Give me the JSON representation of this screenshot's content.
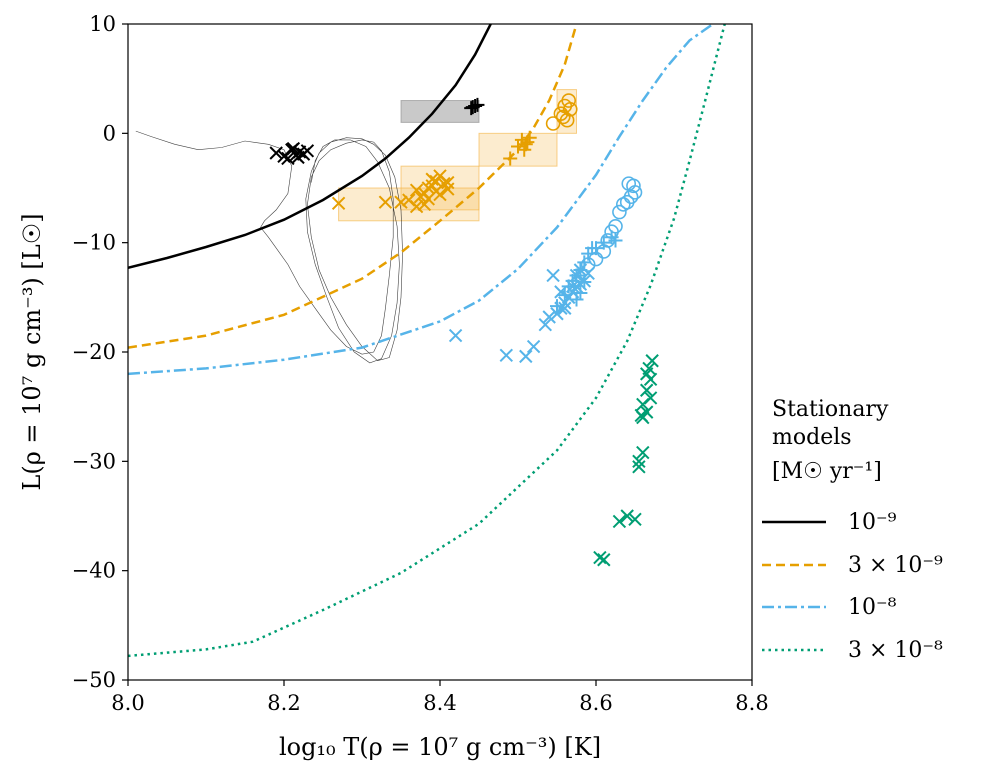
{
  "chart_data": {
    "type": "scatter",
    "xlabel": "log₁₀ T(ρ = 10⁷ g cm⁻³) [K]",
    "ylabel": "L(ρ = 10⁷ g cm⁻³) [L☉]",
    "xlim": [
      8.0,
      8.8
    ],
    "ylim": [
      -50,
      10
    ],
    "xticks": [
      8.0,
      8.2,
      8.4,
      8.6,
      8.8
    ],
    "yticks": [
      -50,
      -40,
      -30,
      -20,
      -10,
      0,
      10
    ],
    "xtick_labels": [
      "8.0",
      "8.2",
      "8.4",
      "8.6",
      "8.8"
    ],
    "ytick_labels": [
      "−50",
      "−40",
      "−30",
      "−20",
      "−10",
      "0",
      "10"
    ],
    "grid": false,
    "legend": {
      "placement": "outside-right",
      "title_lines": [
        "Stationary",
        "models",
        "[M☉ yr⁻¹]"
      ],
      "entries": [
        {
          "label": "10⁻⁹",
          "color": "#000000",
          "style": "solid"
        },
        {
          "label": "3 × 10⁻⁹",
          "color": "#E69F00",
          "style": "dashed"
        },
        {
          "label": "10⁻⁸",
          "color": "#56B4E9",
          "style": "dashdot"
        },
        {
          "label": "3 × 10⁻⁸",
          "color": "#009E73",
          "style": "dotted"
        }
      ]
    },
    "curves": [
      {
        "color": "#000000",
        "style": "solid",
        "x": [
          8.0,
          8.05,
          8.1,
          8.15,
          8.2,
          8.25,
          8.3,
          8.33,
          8.36,
          8.39,
          8.42,
          8.445,
          8.465
        ],
        "y": [
          -12.3,
          -11.4,
          -10.4,
          -9.3,
          -7.9,
          -6.1,
          -3.9,
          -2.3,
          -0.4,
          1.8,
          4.4,
          7.2,
          10.0
        ]
      },
      {
        "color": "#E69F00",
        "style": "dashed",
        "x": [
          8.0,
          8.1,
          8.2,
          8.3,
          8.35,
          8.4,
          8.45,
          8.5,
          8.52,
          8.54,
          8.56,
          8.575
        ],
        "y": [
          -19.6,
          -18.5,
          -16.6,
          -13.3,
          -10.9,
          -8.0,
          -5.0,
          -1.5,
          0.5,
          3.0,
          6.3,
          10.0
        ]
      },
      {
        "color": "#56B4E9",
        "style": "dashdot",
        "x": [
          8.0,
          8.1,
          8.2,
          8.3,
          8.4,
          8.45,
          8.5,
          8.55,
          8.6,
          8.63,
          8.66,
          8.69,
          8.72,
          8.75
        ],
        "y": [
          -22.0,
          -21.5,
          -20.7,
          -19.6,
          -17.2,
          -15.3,
          -12.4,
          -8.6,
          -3.8,
          -0.3,
          3.0,
          6.0,
          8.5,
          10.0
        ]
      },
      {
        "color": "#009E73",
        "style": "dotted",
        "x": [
          8.0,
          8.1,
          8.16,
          8.25,
          8.35,
          8.45,
          8.55,
          8.6,
          8.64,
          8.67,
          8.7,
          8.72,
          8.74,
          8.765
        ],
        "y": [
          -47.8,
          -47.2,
          -46.5,
          -43.6,
          -40.2,
          -35.7,
          -29.0,
          -24.2,
          -19.0,
          -13.9,
          -7.8,
          -2.5,
          3.0,
          10.0
        ]
      }
    ],
    "shaded_boxes": [
      {
        "color": "#888888",
        "opacity": 0.45,
        "x": [
          8.35,
          8.45
        ],
        "y": [
          1.0,
          3.0
        ]
      },
      {
        "color": "#F3B23F",
        "opacity": 0.25,
        "x": [
          8.27,
          8.45
        ],
        "y": [
          -8.0,
          -5.0
        ]
      },
      {
        "color": "#F3B23F",
        "opacity": 0.25,
        "x": [
          8.35,
          8.45
        ],
        "y": [
          -7.0,
          -3.0
        ]
      },
      {
        "color": "#F3B23F",
        "opacity": 0.25,
        "x": [
          8.45,
          8.55
        ],
        "y": [
          -3.0,
          0.0
        ]
      },
      {
        "color": "#F3B23F",
        "opacity": 0.25,
        "x": [
          8.55,
          8.575
        ],
        "y": [
          0.0,
          4.0
        ]
      }
    ],
    "series": [
      {
        "color": "#000000",
        "marker": "x",
        "x": [
          8.19,
          8.2,
          8.21,
          8.215,
          8.22,
          8.225,
          8.23,
          8.205,
          8.218,
          8.212
        ],
        "y": [
          -1.8,
          -2.1,
          -1.5,
          -2.0,
          -1.7,
          -1.9,
          -1.6,
          -2.3,
          -2.2,
          -1.4
        ]
      },
      {
        "color": "#000000",
        "marker": "+",
        "x": [
          8.44,
          8.445,
          8.448,
          8.442
        ],
        "y": [
          2.3,
          2.5,
          2.6,
          2.4
        ]
      },
      {
        "color": "#E69F00",
        "marker": "x",
        "x": [
          8.27,
          8.33,
          8.35,
          8.36,
          8.37,
          8.375,
          8.38,
          8.385,
          8.39,
          8.395,
          8.4,
          8.405,
          8.41,
          8.39,
          8.4,
          8.38,
          8.37,
          8.41,
          8.395,
          8.385
        ],
        "y": [
          -6.4,
          -6.3,
          -6.3,
          -6.1,
          -5.2,
          -5.8,
          -5.5,
          -5.0,
          -4.8,
          -5.3,
          -5.6,
          -4.6,
          -5.1,
          -4.2,
          -3.9,
          -6.5,
          -6.7,
          -4.5,
          -4.4,
          -6.0
        ]
      },
      {
        "color": "#E69F00",
        "marker": "+",
        "x": [
          8.49,
          8.5,
          8.505,
          8.51,
          8.515,
          8.512,
          8.508
        ],
        "y": [
          -2.3,
          -1.2,
          -0.6,
          -1.0,
          -0.4,
          -0.8,
          -1.5
        ]
      },
      {
        "color": "#E69F00",
        "marker": "o",
        "x": [
          8.545,
          8.555,
          8.56,
          8.565,
          8.563,
          8.558,
          8.567
        ],
        "y": [
          0.9,
          1.8,
          2.5,
          3.0,
          1.2,
          1.5,
          2.2
        ]
      },
      {
        "color": "#56B4E9",
        "marker": "x",
        "x": [
          8.42,
          8.485,
          8.51,
          8.52,
          8.535,
          8.54,
          8.55,
          8.555,
          8.56,
          8.565,
          8.57,
          8.575,
          8.58,
          8.585,
          8.59,
          8.58,
          8.575,
          8.57,
          8.565,
          8.56,
          8.555,
          8.545
        ],
        "y": [
          -18.5,
          -20.3,
          -20.4,
          -19.5,
          -17.5,
          -16.8,
          -16.5,
          -16.0,
          -15.5,
          -15.0,
          -14.5,
          -14.0,
          -13.8,
          -13.5,
          -12.8,
          -12.5,
          -13.0,
          -14.0,
          -15.0,
          -16.0,
          -14.5,
          -13.0
        ]
      },
      {
        "color": "#56B4E9",
        "marker": "+",
        "x": [
          8.55,
          8.56,
          8.565,
          8.57,
          8.575,
          8.58,
          8.585,
          8.59,
          8.595,
          8.6,
          8.61,
          8.62,
          8.625,
          8.575,
          8.58,
          8.585
        ],
        "y": [
          -15.8,
          -14.8,
          -14.0,
          -13.5,
          -13.0,
          -12.5,
          -11.8,
          -11.0,
          -10.5,
          -10.5,
          -10.0,
          -9.5,
          -9.8,
          -15.2,
          -14.6,
          -13.6
        ]
      },
      {
        "color": "#56B4E9",
        "marker": "o",
        "x": [
          8.59,
          8.6,
          8.61,
          8.615,
          8.62,
          8.625,
          8.63,
          8.635,
          8.64,
          8.645,
          8.65,
          8.648,
          8.642
        ],
        "y": [
          -12.0,
          -11.5,
          -10.8,
          -9.8,
          -9.0,
          -8.5,
          -7.2,
          -6.5,
          -6.3,
          -5.8,
          -5.4,
          -4.8,
          -4.6
        ]
      },
      {
        "color": "#009E73",
        "marker": "x",
        "x": [
          8.605,
          8.61,
          8.63,
          8.64,
          8.65,
          8.655,
          8.66,
          8.655,
          8.66,
          8.665,
          8.67,
          8.665,
          8.67,
          8.668,
          8.66,
          8.665,
          8.672,
          8.658
        ],
        "y": [
          -38.8,
          -39.0,
          -35.5,
          -35.0,
          -35.3,
          -30.0,
          -29.2,
          -30.5,
          -26.0,
          -25.5,
          -24.2,
          -23.5,
          -22.5,
          -21.5,
          -24.8,
          -22.0,
          -20.8,
          -25.8
        ]
      }
    ],
    "trajectory": {
      "color": "#000000",
      "x": [
        8.01,
        8.03,
        8.06,
        8.09,
        8.12,
        8.15,
        8.18,
        8.2,
        8.21,
        8.205,
        8.19,
        8.175,
        8.17,
        8.18,
        8.19,
        8.205,
        8.22,
        8.24,
        8.26,
        8.28,
        8.3,
        8.315,
        8.325,
        8.33,
        8.335,
        8.34,
        8.34,
        8.335,
        8.325,
        8.315,
        8.3,
        8.28,
        8.26,
        8.245,
        8.235,
        8.23,
        8.235,
        8.245,
        8.26,
        8.28,
        8.3,
        8.32,
        8.335,
        8.345,
        8.35,
        8.352,
        8.35,
        8.342,
        8.33,
        8.315,
        8.3,
        8.28,
        8.26,
        8.245,
        8.235,
        8.228,
        8.23,
        8.24,
        8.255,
        8.27,
        8.29,
        8.31,
        8.325,
        8.338,
        8.345,
        8.348,
        8.345,
        8.335,
        8.32,
        8.305,
        8.285,
        8.265,
        8.25,
        8.24,
        8.235
      ],
      "y": [
        0.2,
        -0.3,
        -1.0,
        -1.5,
        -1.3,
        -0.7,
        -1.0,
        -1.5,
        -3.0,
        -5.5,
        -7.0,
        -8.0,
        -8.6,
        -9.5,
        -10.5,
        -12.0,
        -14.0,
        -16.0,
        -18.0,
        -19.5,
        -20.2,
        -20.0,
        -18.5,
        -16.0,
        -13.0,
        -9.5,
        -6.0,
        -3.5,
        -1.6,
        -0.8,
        -0.6,
        -0.9,
        -1.5,
        -2.5,
        -4.0,
        -6.5,
        -9.5,
        -12.5,
        -15.0,
        -17.5,
        -19.5,
        -20.8,
        -20.5,
        -18.0,
        -15.0,
        -11.0,
        -7.0,
        -4.0,
        -2.0,
        -1.0,
        -0.5,
        -0.4,
        -0.8,
        -1.8,
        -3.5,
        -6.0,
        -9.0,
        -12.0,
        -15.0,
        -17.8,
        -20.0,
        -21.0,
        -20.6,
        -18.5,
        -15.5,
        -12.0,
        -8.5,
        -5.0,
        -2.6,
        -1.2,
        -0.6,
        -0.6,
        -1.2,
        -2.5,
        -4.5
      ]
    }
  }
}
